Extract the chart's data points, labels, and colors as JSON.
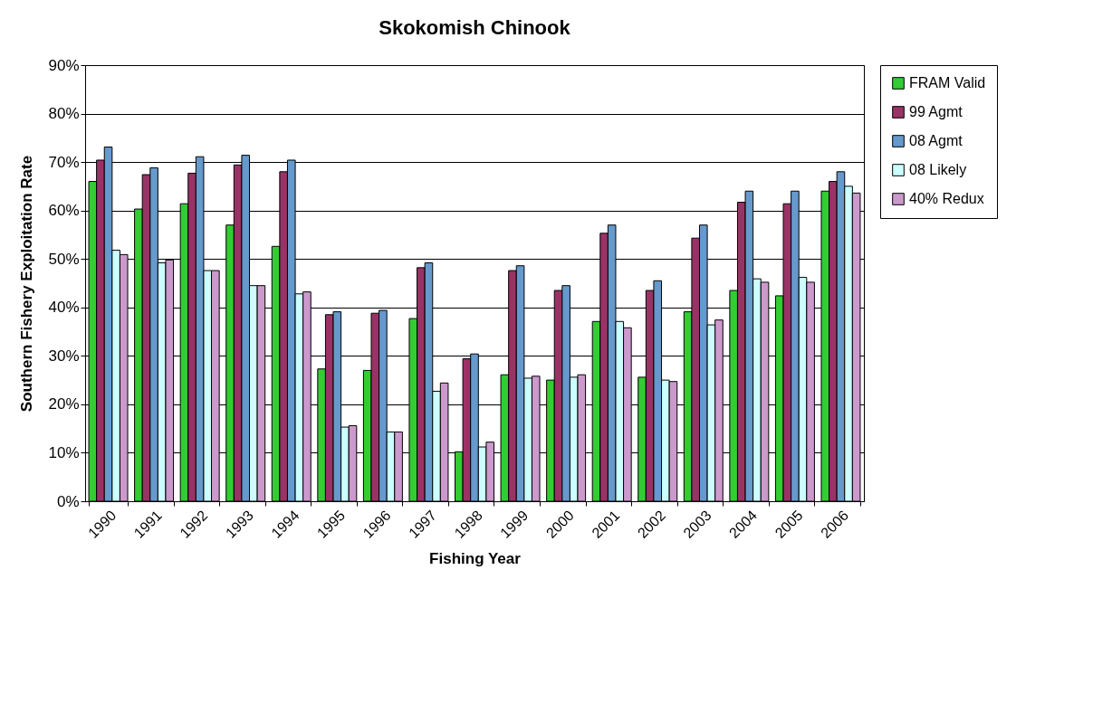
{
  "chart_data": {
    "type": "bar",
    "title": "Skokomish Chinook",
    "xlabel": "Fishing Year",
    "ylabel": "Southern Fishery Exploitation Rate",
    "categories": [
      "1990",
      "1991",
      "1992",
      "1993",
      "1994",
      "1995",
      "1996",
      "1997",
      "1998",
      "1999",
      "2000",
      "2001",
      "2002",
      "2003",
      "2004",
      "2005",
      "2006"
    ],
    "series": [
      {
        "name": "FRAM Valid",
        "color": "#33cc33",
        "values": [
          66.0,
          60.3,
          61.4,
          57.0,
          52.6,
          27.3,
          27.0,
          37.7,
          10.2,
          26.1,
          25.0,
          37.1,
          25.6,
          39.1,
          43.5,
          42.4,
          64
        ]
      },
      {
        "name": "99 Agmt",
        "color": "#993366",
        "values": [
          70.4,
          67.4,
          67.7,
          69.4,
          68.0,
          38.5,
          38.8,
          48.2,
          29.4,
          47.6,
          43.5,
          55.3,
          43.5,
          54.3,
          61.7,
          61.4,
          66
        ]
      },
      {
        "name": "08 Agmt",
        "color": "#6699cc",
        "values": [
          73.1,
          68.8,
          71.1,
          71.4,
          70.4,
          39.1,
          39.4,
          49.2,
          30.4,
          48.6,
          44.5,
          57.0,
          45.5,
          57.0,
          64,
          64,
          68
        ]
      },
      {
        "name": "08 Likely",
        "color": "#ccffff",
        "values": [
          51.8,
          49.2,
          47.6,
          44.5,
          42.8,
          15.3,
          14.3,
          22.7,
          11.2,
          25.4,
          25.6,
          37.1,
          25.0,
          36.4,
          45.9,
          46.2,
          65
        ]
      },
      {
        "name": "40% Redux",
        "color": "#cc99cc",
        "values": [
          50.9,
          49.8,
          47.6,
          44.5,
          43.2,
          15.6,
          14.3,
          24.4,
          12.2,
          25.8,
          26.1,
          35.8,
          24.7,
          37.4,
          45.2,
          45.2,
          63.6
        ]
      }
    ],
    "ylim": [
      0,
      90
    ],
    "yticks": [
      {
        "value": 0,
        "label": "0%"
      },
      {
        "value": 10,
        "label": "10%"
      },
      {
        "value": 20,
        "label": "20%"
      },
      {
        "value": 30,
        "label": "30%"
      },
      {
        "value": 40,
        "label": "40%"
      },
      {
        "value": 50,
        "label": "50%"
      },
      {
        "value": 60,
        "label": "60%"
      },
      {
        "value": 70,
        "label": "70%"
      },
      {
        "value": 80,
        "label": "80%"
      },
      {
        "value": 90,
        "label": "90%"
      }
    ],
    "grid": "y",
    "legend": "right"
  }
}
